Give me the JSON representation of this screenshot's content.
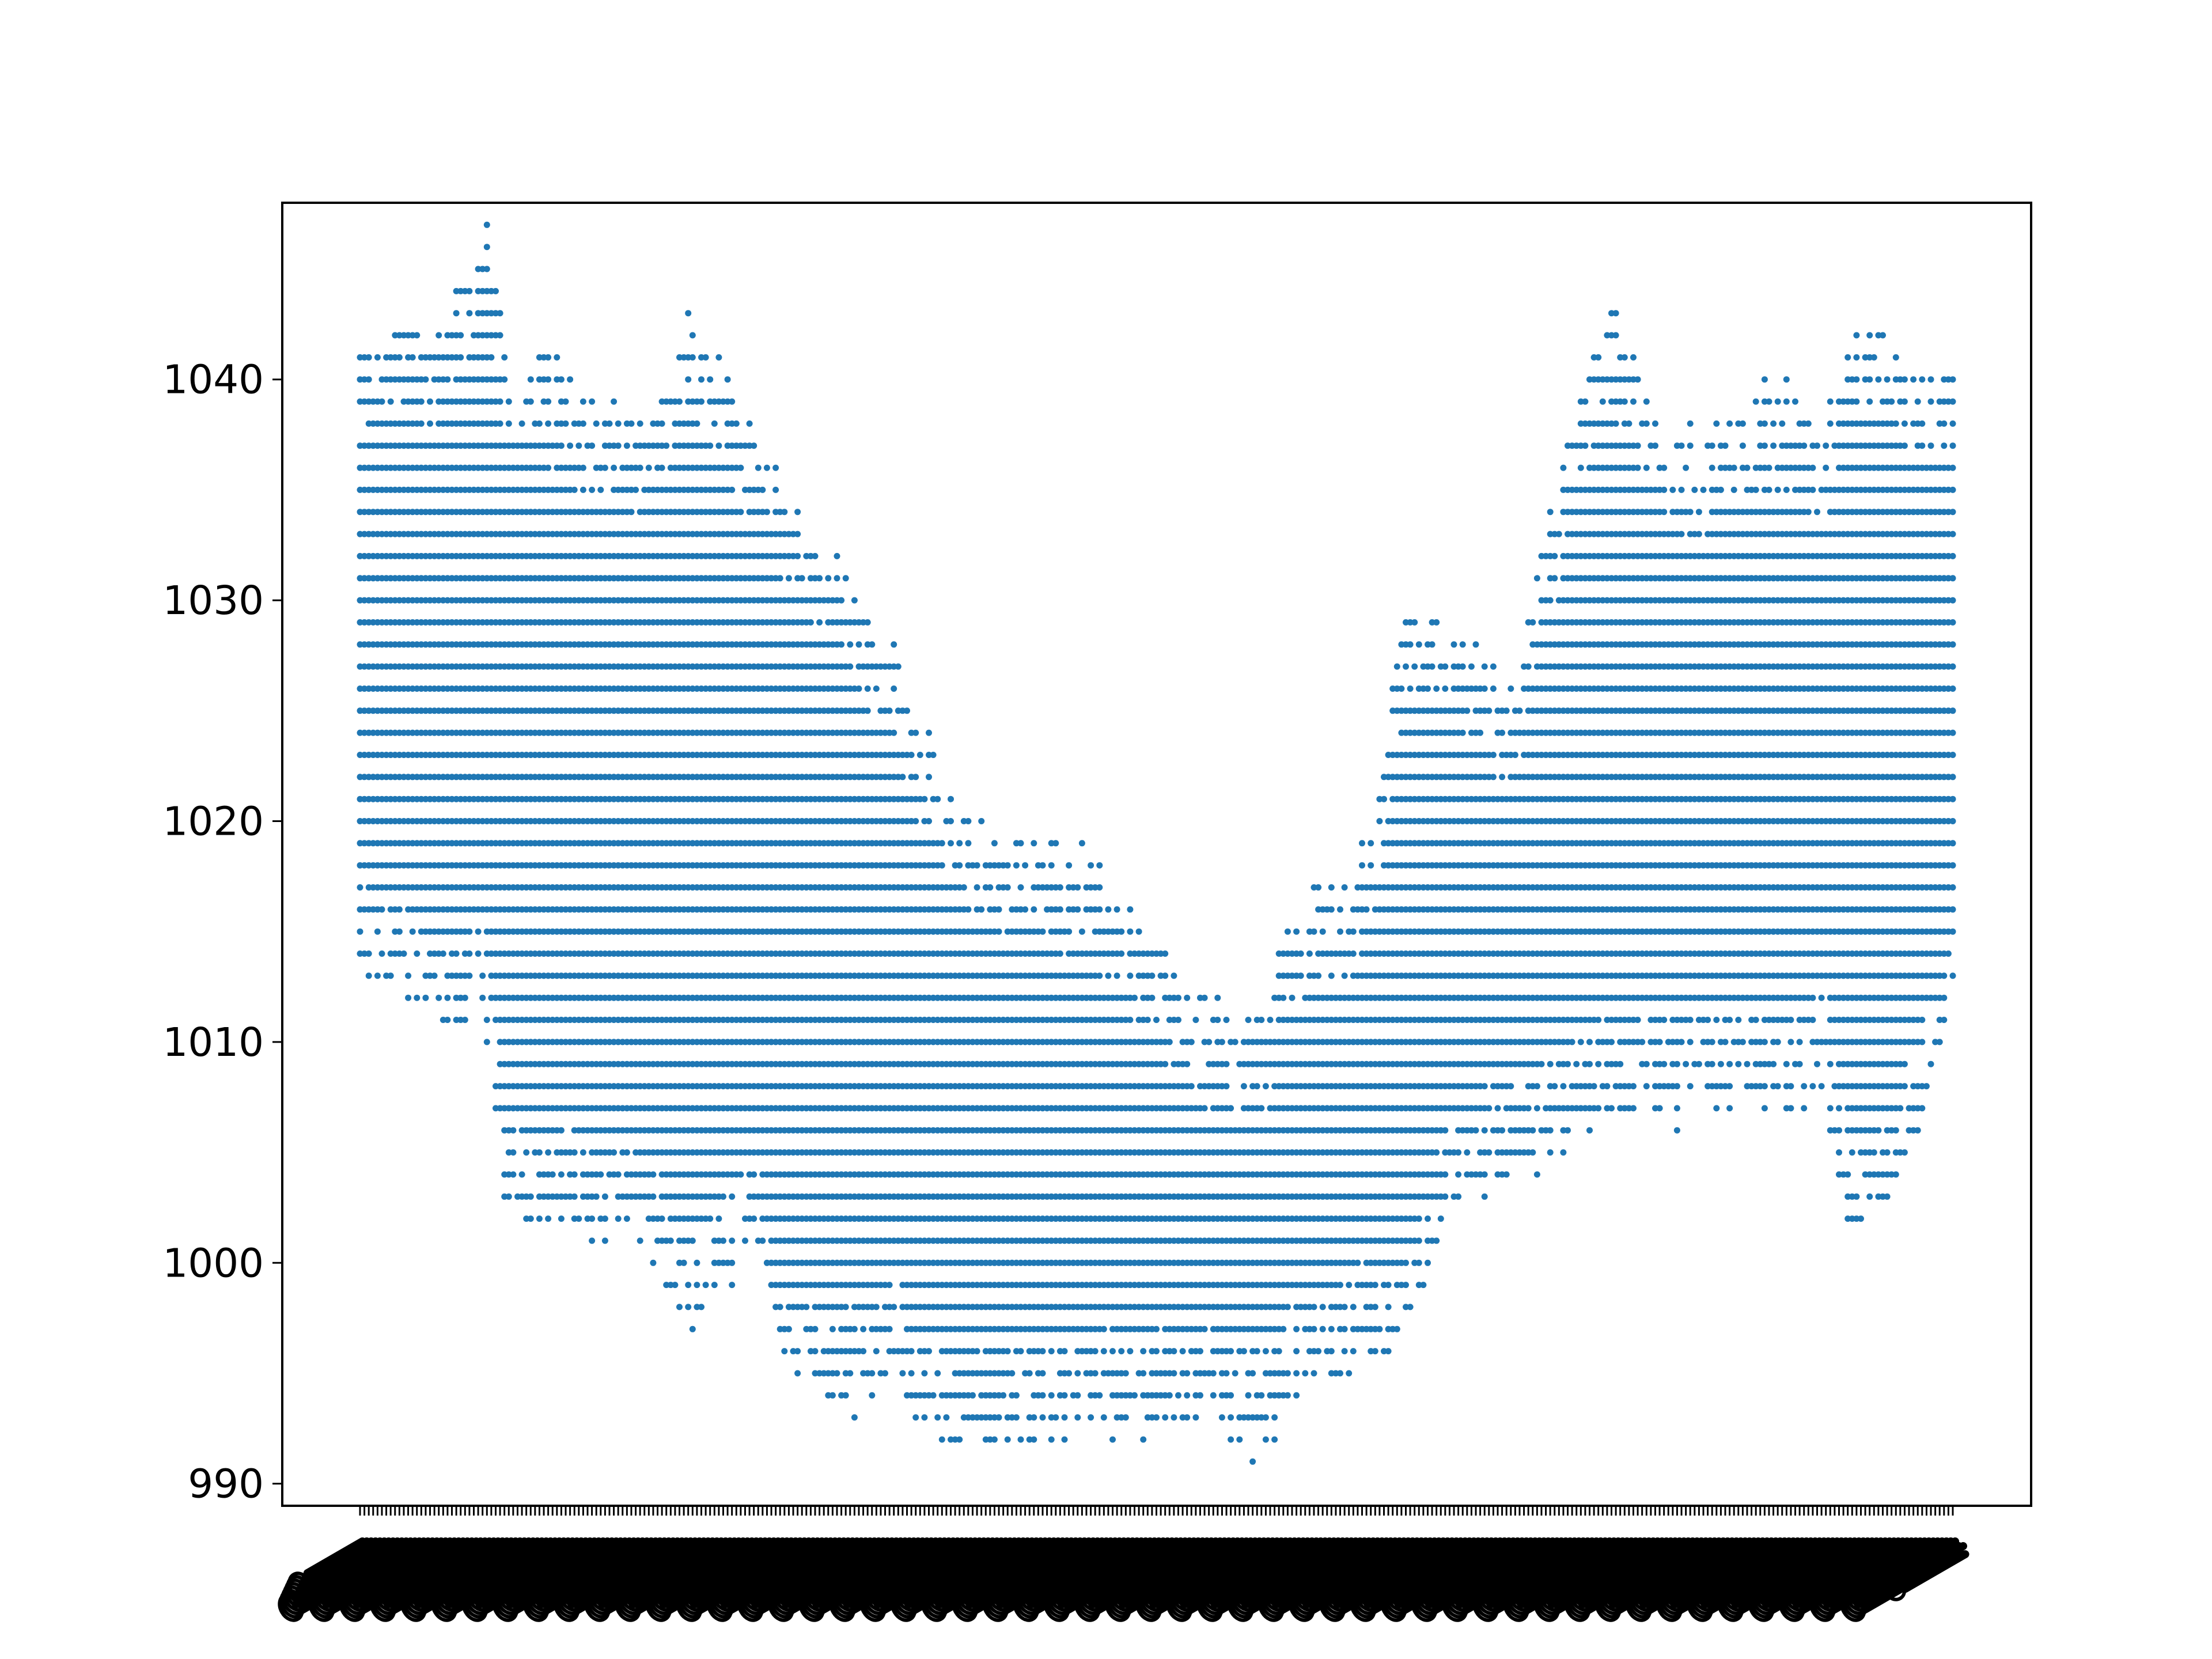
{
  "chart_data": {
    "type": "scatter",
    "title": "",
    "xlabel": "",
    "ylabel": "",
    "ylim": [
      989,
      1048
    ],
    "yticks": [
      990,
      1000,
      1010,
      1020,
      1030,
      1040
    ],
    "ytick_labels": [
      "990",
      "1000",
      "1010",
      "1020",
      "1030",
      "1040"
    ],
    "x_category_count": 365,
    "x_tick_labels_legible": false,
    "grid": false,
    "legend": "none",
    "series_color": "#1f77b4",
    "series": [
      {
        "profile": [
          [
            0,
            1014,
            1041
          ],
          [
            20,
            1011,
            1042
          ],
          [
            30,
            1011,
            1046
          ],
          [
            33,
            1003,
            1041
          ],
          [
            45,
            1002,
            1040
          ],
          [
            60,
            1002,
            1038
          ],
          [
            70,
            1000,
            1039
          ],
          [
            75,
            997,
            1042
          ],
          [
            82,
            999,
            1040
          ],
          [
            90,
            1001,
            1037
          ],
          [
            100,
            995,
            1033
          ],
          [
            112,
            994,
            1031
          ],
          [
            125,
            995,
            1026
          ],
          [
            135,
            992,
            1020
          ],
          [
            145,
            992,
            1019
          ],
          [
            165,
            993,
            1018
          ],
          [
            185,
            993,
            1013
          ],
          [
            195,
            993,
            1011
          ],
          [
            205,
            992,
            1010
          ],
          [
            215,
            995,
            1016
          ],
          [
            228,
            996,
            1017
          ],
          [
            240,
            997,
            1029
          ],
          [
            250,
            1004,
            1028
          ],
          [
            262,
            1004,
            1025
          ],
          [
            275,
            1006,
            1035
          ],
          [
            285,
            1007,
            1043
          ],
          [
            300,
            1007,
            1036
          ],
          [
            312,
            1008,
            1038
          ],
          [
            325,
            1008,
            1039
          ],
          [
            335,
            1008,
            1037
          ],
          [
            340,
            1002,
            1042
          ],
          [
            350,
            1003,
            1041
          ],
          [
            358,
            1007,
            1039
          ],
          [
            364,
            1012,
            1040
          ]
        ]
      }
    ]
  }
}
